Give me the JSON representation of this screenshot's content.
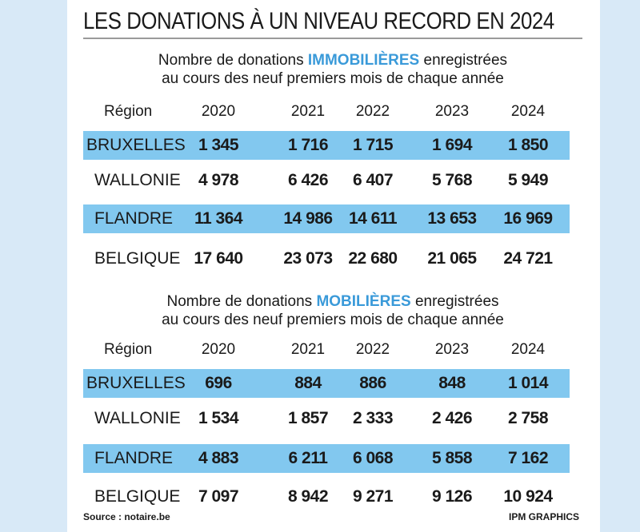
{
  "title": "LES DONATIONS À UN NIVEAU RECORD EN 2024",
  "chart_data": [
    {
      "type": "table",
      "subtitle_pre": "Nombre de donations ",
      "subtitle_accent": "IMMOBILIÈRES",
      "subtitle_post": " enregistrées",
      "subtitle_line2": "au cours des neuf premiers mois de chaque année",
      "columns": [
        "Région",
        "2020",
        "2021",
        "2022",
        "2023",
        "2024"
      ],
      "rows": [
        {
          "region": "BRUXELLES",
          "values": [
            "1 345",
            "1 716",
            "1 715",
            "1 694",
            "1 850"
          ],
          "shaded": true
        },
        {
          "region": "WALLONIE",
          "values": [
            "4 978",
            "6 426",
            "6 407",
            "5 768",
            "5 949"
          ],
          "shaded": false
        },
        {
          "region": "FLANDRE",
          "values": [
            "11 364",
            "14 986",
            "14 611",
            "13 653",
            "16 969"
          ],
          "shaded": true
        },
        {
          "region": "BELGIQUE",
          "values": [
            "17 640",
            "23 073",
            "22 680",
            "21 065",
            "24 721"
          ],
          "shaded": false
        }
      ]
    },
    {
      "type": "table",
      "subtitle_pre": "Nombre de donations ",
      "subtitle_accent": "MOBILIÈRES",
      "subtitle_post": " enregistrées",
      "subtitle_line2": "au cours des neuf premiers mois de chaque année",
      "columns": [
        "Région",
        "2020",
        "2021",
        "2022",
        "2023",
        "2024"
      ],
      "rows": [
        {
          "region": "BRUXELLES",
          "values": [
            "696",
            "884",
            "886",
            "848",
            "1 014"
          ],
          "shaded": true
        },
        {
          "region": "WALLONIE",
          "values": [
            "1 534",
            "1 857",
            "2 333",
            "2 426",
            "2 758"
          ],
          "shaded": false
        },
        {
          "region": "FLANDRE",
          "values": [
            "4 883",
            "6 211",
            "6 068",
            "5 858",
            "7 162"
          ],
          "shaded": true
        },
        {
          "region": "BELGIQUE",
          "values": [
            "7 097",
            "8 942",
            "9 271",
            "9 126",
            "10 924"
          ],
          "shaded": false
        }
      ]
    }
  ],
  "source": "Source : notaire.be",
  "credit": "IPM GRAPHICS",
  "colors": {
    "accent": "#3a9ad9",
    "row_highlight": "#82c8ef",
    "background": "#d8e9f7"
  }
}
